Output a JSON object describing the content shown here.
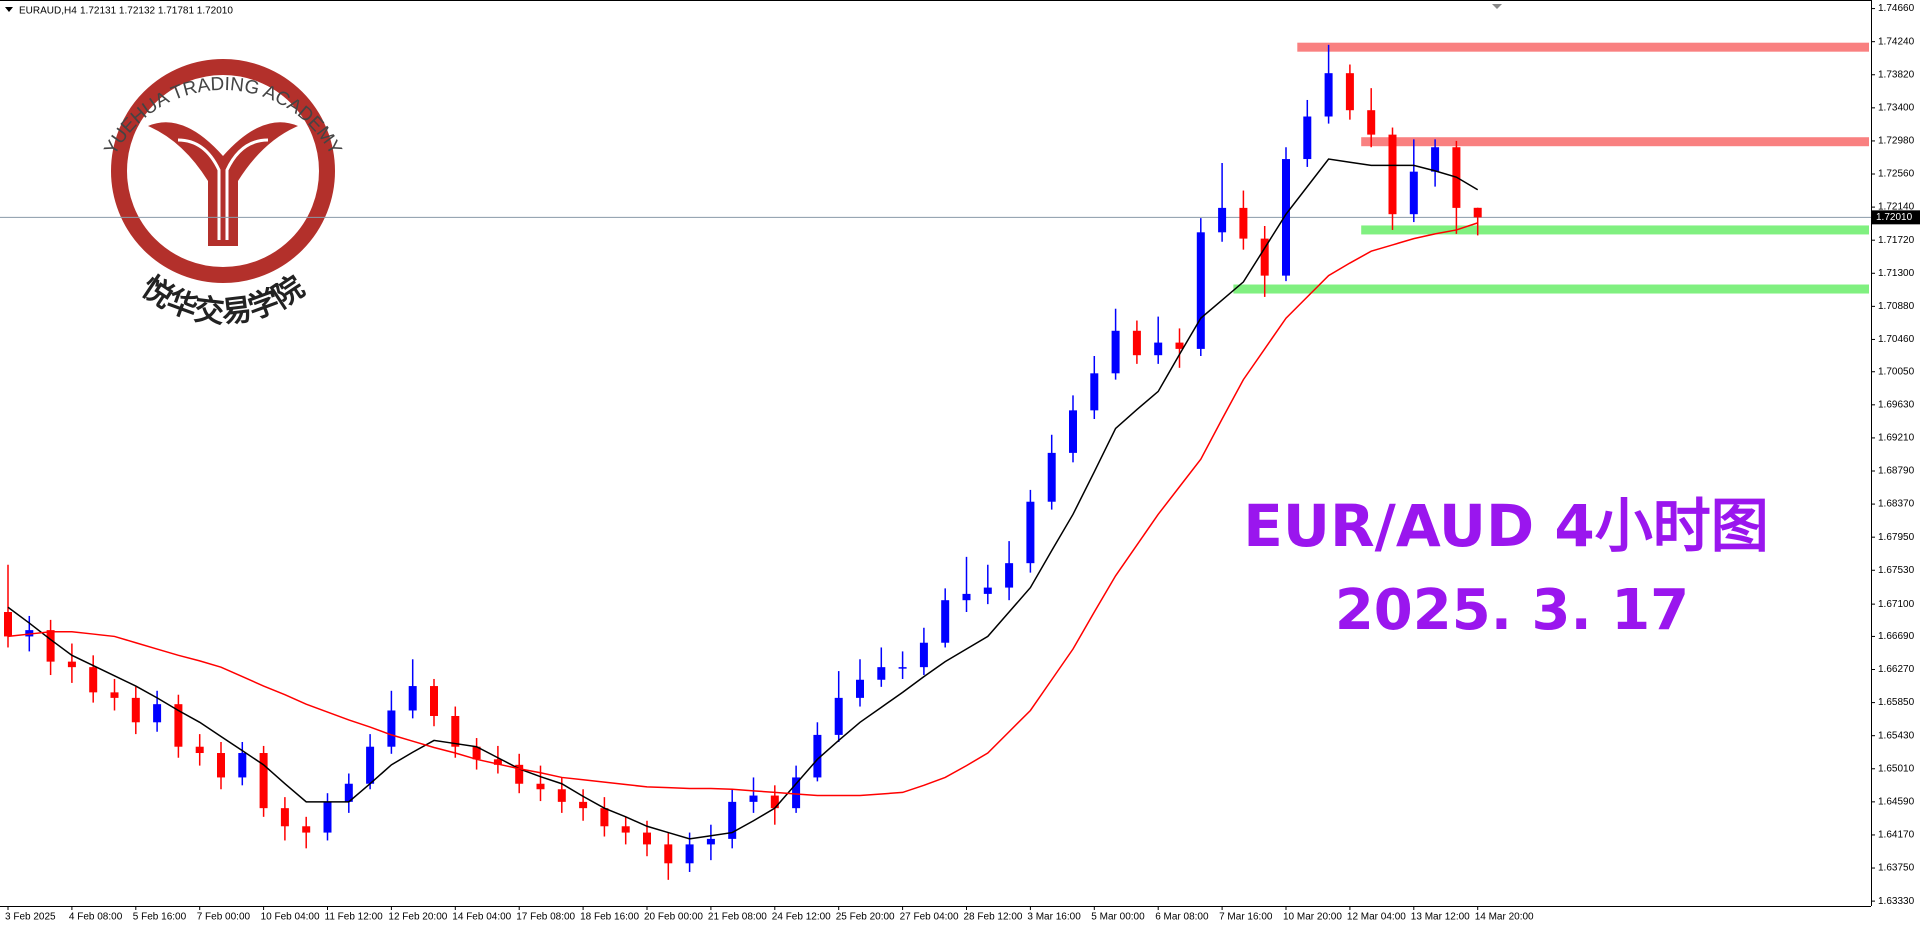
{
  "chart_data": {
    "type": "candlestick",
    "symbol": "EURAUD,H4",
    "quote": "1.72131 1.72132 1.71781 1.72010",
    "logo_text": "YUEHUA TRADING ACADEMY",
    "logo_cn": "悦华交易学院",
    "annotations": [
      "EUR/AUD 4小时图",
      "2025. 3. 17"
    ],
    "categories": [
      "3 Feb 2025",
      null,
      null,
      "4 Feb 08:00",
      null,
      null,
      "5 Feb 16:00",
      null,
      null,
      "7 Feb 00:00",
      null,
      null,
      "10 Feb 04:00",
      null,
      null,
      "11 Feb 12:00",
      null,
      null,
      "12 Feb 20:00",
      null,
      null,
      "14 Feb 04:00",
      null,
      null,
      "17 Feb 08:00",
      null,
      null,
      "18 Feb 16:00",
      null,
      null,
      "20 Feb 00:00",
      null,
      null,
      "21 Feb 08:00",
      null,
      null,
      "24 Feb 12:00",
      null,
      null,
      "25 Feb 20:00",
      null,
      null,
      "27 Feb 04:00",
      null,
      null,
      "28 Feb 12:00",
      null,
      null,
      "3 Mar 16:00",
      null,
      null,
      "5 Mar 00:00",
      null,
      null,
      "6 Mar 08:00",
      null,
      null,
      "7 Mar 16:00",
      null,
      null,
      "10 Mar 20:00",
      null,
      null,
      "12 Mar 04:00",
      null,
      null,
      "13 Mar 12:00",
      null,
      null,
      "14 Mar 20:00"
    ],
    "open": [
      1.67,
      1.6669,
      1.6677,
      1.6637,
      1.663,
      1.6598,
      1.6591,
      1.656,
      1.6583,
      1.6529,
      1.6521,
      1.649,
      1.6521,
      1.6451,
      1.6428,
      1.642,
      1.6459,
      1.6482,
      1.6529,
      1.6575,
      1.6606,
      1.6568,
      1.6529,
      1.6513,
      1.6506,
      1.6482,
      1.6475,
      1.6459,
      1.6451,
      1.6428,
      1.642,
      1.6405,
      1.6381,
      1.6405,
      1.6412,
      1.6459,
      1.6467,
      1.6451,
      1.649,
      1.6544,
      1.6591,
      1.6614,
      1.663,
      1.663,
      1.6661,
      1.6715,
      1.6723,
      1.6731,
      1.6762,
      1.684,
      1.6902,
      1.6956,
      1.7003,
      1.7057,
      1.7026,
      1.7042,
      1.7034,
      1.7182,
      1.7213,
      1.7174,
      1.7127,
      1.7275,
      1.7329,
      1.7384,
      1.7337,
      1.7306,
      1.7205,
      1.7259,
      1.729,
      1.72131
    ],
    "high": [
      1.676,
      1.6695,
      1.669,
      1.666,
      1.6645,
      1.6615,
      1.6605,
      1.66,
      1.6595,
      1.6545,
      1.6535,
      1.6535,
      1.653,
      1.6465,
      1.644,
      1.647,
      1.6495,
      1.6545,
      1.66,
      1.664,
      1.6615,
      1.658,
      1.654,
      1.653,
      1.652,
      1.6505,
      1.649,
      1.6475,
      1.6465,
      1.644,
      1.6435,
      1.642,
      1.642,
      1.643,
      1.6475,
      1.649,
      1.648,
      1.6505,
      1.656,
      1.6625,
      1.664,
      1.6655,
      1.665,
      1.668,
      1.673,
      1.677,
      1.676,
      1.679,
      1.6855,
      1.6925,
      1.6975,
      1.7025,
      1.7085,
      1.707,
      1.7075,
      1.706,
      1.72,
      1.727,
      1.7235,
      1.719,
      1.729,
      1.735,
      1.742,
      1.7395,
      1.7365,
      1.7315,
      1.73,
      1.73,
      1.7298,
      1.72132
    ],
    "low": [
      1.6655,
      1.665,
      1.662,
      1.661,
      1.6585,
      1.6575,
      1.6545,
      1.6548,
      1.6515,
      1.6505,
      1.6475,
      1.648,
      1.644,
      1.641,
      1.64,
      1.641,
      1.6445,
      1.6475,
      1.652,
      1.6565,
      1.6555,
      1.6515,
      1.65,
      1.6495,
      1.647,
      1.646,
      1.6445,
      1.6435,
      1.6415,
      1.6405,
      1.639,
      1.636,
      1.637,
      1.6385,
      1.64,
      1.6445,
      1.643,
      1.6445,
      1.6485,
      1.6535,
      1.658,
      1.6605,
      1.6615,
      1.662,
      1.6655,
      1.67,
      1.671,
      1.6715,
      1.675,
      1.683,
      1.689,
      1.6945,
      1.6995,
      1.7015,
      1.7015,
      1.701,
      1.7025,
      1.717,
      1.716,
      1.71,
      1.712,
      1.7265,
      1.732,
      1.7325,
      1.729,
      1.7185,
      1.7195,
      1.724,
      1.718,
      1.71781
    ],
    "close": [
      1.6669,
      1.6677,
      1.6637,
      1.663,
      1.6598,
      1.6591,
      1.656,
      1.6583,
      1.6529,
      1.6521,
      1.649,
      1.6521,
      1.6451,
      1.6428,
      1.642,
      1.6459,
      1.6482,
      1.6529,
      1.6575,
      1.6606,
      1.6568,
      1.6529,
      1.6513,
      1.6506,
      1.6482,
      1.6475,
      1.6459,
      1.6451,
      1.6428,
      1.642,
      1.6405,
      1.6381,
      1.6405,
      1.6412,
      1.6459,
      1.6467,
      1.6451,
      1.649,
      1.6544,
      1.6591,
      1.6614,
      1.663,
      1.663,
      1.6661,
      1.6715,
      1.6723,
      1.6731,
      1.6762,
      1.684,
      1.6902,
      1.6956,
      1.7003,
      1.7057,
      1.7026,
      1.7042,
      1.7034,
      1.7182,
      1.7213,
      1.7174,
      1.7127,
      1.7275,
      1.7329,
      1.7384,
      1.7337,
      1.7306,
      1.7205,
      1.7259,
      1.729,
      1.7213,
      1.7201
    ],
    "up_color": "#0000ff",
    "down_color": "#ff0000",
    "lines": [
      {
        "color": "#000000",
        "values": [
          1.6706,
          1.6686,
          1.6665,
          1.6645,
          1.6632,
          1.6619,
          1.6606,
          1.6591,
          1.6575,
          1.656,
          1.6542,
          1.6524,
          1.6506,
          1.6482,
          1.6459,
          1.6459,
          1.6459,
          1.6482,
          1.6506,
          1.6522,
          1.6537,
          1.6533,
          1.6529,
          1.6515,
          1.6501,
          1.6491,
          1.6482,
          1.6466,
          1.6451,
          1.644,
          1.6428,
          1.642,
          1.6412,
          1.6416,
          1.642,
          1.6435,
          1.6451,
          1.6482,
          1.6513,
          1.6537,
          1.656,
          1.6579,
          1.6598,
          1.6618,
          1.6637,
          1.6653,
          1.6669,
          1.67,
          1.6731,
          1.6778,
          1.6824,
          1.6878,
          1.6933,
          1.6957,
          1.698,
          1.7027,
          1.7073,
          1.7096,
          1.7119,
          1.7162,
          1.7205,
          1.724,
          1.7275,
          1.7271,
          1.7267,
          1.7267,
          1.7267,
          1.726,
          1.7252,
          1.7236
        ]
      },
      {
        "color": "#ff0000",
        "values": [
          1.6669,
          1.6672,
          1.6675,
          1.6675,
          1.6672,
          1.6669,
          1.6661,
          1.6653,
          1.6645,
          1.6638,
          1.663,
          1.6618,
          1.6606,
          1.6595,
          1.6583,
          1.6573,
          1.6563,
          1.6554,
          1.6544,
          1.6536,
          1.6528,
          1.6521,
          1.6513,
          1.6507,
          1.6501,
          1.6496,
          1.649,
          1.6487,
          1.6484,
          1.6481,
          1.6478,
          1.6477,
          1.6476,
          1.6476,
          1.6475,
          1.6473,
          1.6471,
          1.6469,
          1.6467,
          1.6467,
          1.6467,
          1.6469,
          1.6471,
          1.648,
          1.649,
          1.6505,
          1.6521,
          1.6548,
          1.6575,
          1.6614,
          1.6653,
          1.67,
          1.6746,
          1.6785,
          1.6824,
          1.6859,
          1.6894,
          1.6945,
          1.6995,
          1.7034,
          1.7073,
          1.71,
          1.7127,
          1.7143,
          1.7158,
          1.7166,
          1.7174,
          1.718,
          1.7185,
          1.7194
        ]
      }
    ],
    "zones": [
      {
        "value": 1.7417,
        "start": 61,
        "color": "#f98080"
      },
      {
        "value": 1.7297,
        "start": 64,
        "color": "#f98080"
      },
      {
        "value": 1.7185,
        "start": 64,
        "color": "#80f080"
      },
      {
        "value": 1.711,
        "start": 58,
        "color": "#80f080"
      }
    ],
    "last_price": {
      "value": 1.7201,
      "label": "1.72010"
    },
    "ylim": [
      1.63268,
      1.74769
    ],
    "yticks": [
      {
        "value": 1.7466,
        "label": "1.74660"
      },
      {
        "value": 1.7424,
        "label": "1.74240"
      },
      {
        "value": 1.7382,
        "label": "1.73820"
      },
      {
        "value": 1.734,
        "label": "1.73400"
      },
      {
        "value": 1.7298,
        "label": "1.72980"
      },
      {
        "value": 1.7256,
        "label": "1.72560"
      },
      {
        "value": 1.7214,
        "label": "1.72140"
      },
      {
        "value": 1.7172,
        "label": "1.71720"
      },
      {
        "value": 1.713,
        "label": "1.71300"
      },
      {
        "value": 1.7088,
        "label": "1.70880"
      },
      {
        "value": 1.7046,
        "label": "1.70460"
      },
      {
        "value": 1.7005,
        "label": "1.70050"
      },
      {
        "value": 1.6963,
        "label": "1.69630"
      },
      {
        "value": 1.6921,
        "label": "1.69210"
      },
      {
        "value": 1.6879,
        "label": "1.68790"
      },
      {
        "value": 1.6837,
        "label": "1.68370"
      },
      {
        "value": 1.6795,
        "label": "1.67950"
      },
      {
        "value": 1.6753,
        "label": "1.67530"
      },
      {
        "value": 1.671,
        "label": "1.67100"
      },
      {
        "value": 1.6669,
        "label": "1.66690"
      },
      {
        "value": 1.6627,
        "label": "1.66270"
      },
      {
        "value": 1.6585,
        "label": "1.65850"
      },
      {
        "value": 1.6543,
        "label": "1.65430"
      },
      {
        "value": 1.6501,
        "label": "1.65010"
      },
      {
        "value": 1.6459,
        "label": "1.64590"
      },
      {
        "value": 1.6417,
        "label": "1.64170"
      },
      {
        "value": 1.6375,
        "label": "1.63750"
      },
      {
        "value": 1.6333,
        "label": "1.63330"
      }
    ]
  }
}
